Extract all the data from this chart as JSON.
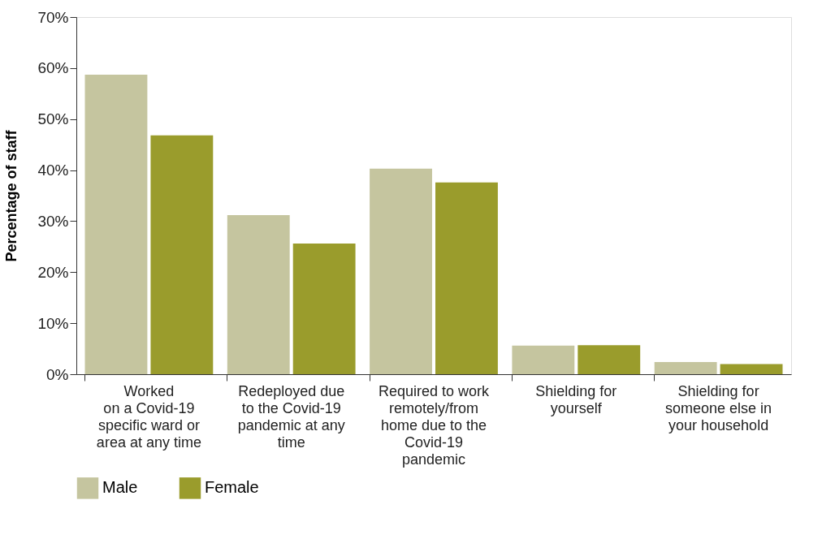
{
  "chart_data": {
    "type": "bar",
    "ylabel": "Percentage of staff",
    "categories": [
      "Worked\non a Covid-19\nspecific ward or\narea at any time",
      "Redeployed due\nto the Covid-19\npandemic at any\ntime",
      "Required to work\nremotely/from\nhome due to the\nCovid-19\npandemic",
      "Shielding for\nyourself",
      "Shielding for\nsomeone else in\nyour household"
    ],
    "series": [
      {
        "name": "Male",
        "color": "#c5c59f",
        "values": [
          58.7,
          31.2,
          40.3,
          5.6,
          2.4
        ]
      },
      {
        "name": "Female",
        "color": "#9a9c2c",
        "values": [
          46.8,
          25.6,
          37.6,
          5.7,
          2.0
        ]
      }
    ],
    "ylim": [
      0,
      70
    ],
    "yticks": [
      {
        "value": 0,
        "label": "0%"
      },
      {
        "value": 10,
        "label": "10%"
      },
      {
        "value": 20,
        "label": "20%"
      },
      {
        "value": 30,
        "label": "30%"
      },
      {
        "value": 40,
        "label": "40%"
      },
      {
        "value": 50,
        "label": "50%"
      },
      {
        "value": 60,
        "label": "60%"
      },
      {
        "value": 70,
        "label": "70%"
      }
    ],
    "grid": false,
    "legend": "bottom"
  }
}
